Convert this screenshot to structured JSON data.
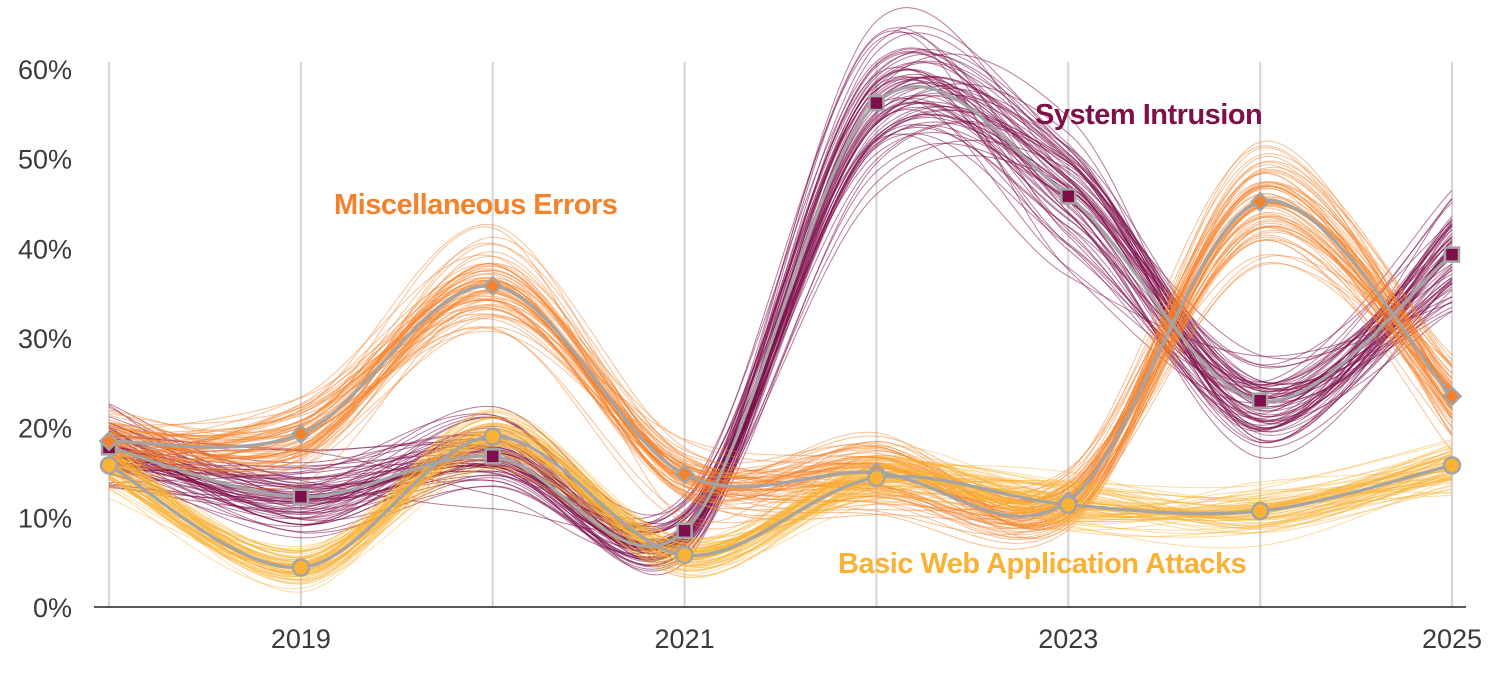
{
  "chart_data": {
    "type": "line",
    "x": [
      2018,
      2019,
      2020,
      2021,
      2022,
      2023,
      2024,
      2025
    ],
    "xticks": [
      "2019",
      "2021",
      "2023",
      "2025"
    ],
    "xtick_values": [
      2019,
      2021,
      2023,
      2025
    ],
    "yticks": [
      "0%",
      "10%",
      "20%",
      "30%",
      "40%",
      "50%",
      "60%"
    ],
    "ytick_values": [
      0,
      10,
      20,
      30,
      40,
      50,
      60
    ],
    "xlim": [
      2018,
      2025
    ],
    "ylim": [
      0,
      60
    ],
    "grid": "vertical",
    "xlabel": "",
    "ylabel": "",
    "title": "",
    "series": [
      {
        "name": "System Intrusion",
        "color": "#7e0f4a",
        "marker": "square",
        "values": [
          17.8,
          12.3,
          16.8,
          8.5,
          56.2,
          45.8,
          23.0,
          39.3
        ]
      },
      {
        "name": "Miscellaneous Errors",
        "color": "#f5822a",
        "marker": "diamond",
        "values": [
          18.5,
          19.3,
          35.8,
          14.8,
          15.0,
          11.8,
          45.2,
          23.5
        ]
      },
      {
        "name": "Basic Web Application Attacks",
        "color": "#f9b233",
        "marker": "circle",
        "values": [
          15.8,
          4.4,
          19.0,
          5.8,
          14.4,
          11.4,
          10.7,
          15.8
        ]
      }
    ],
    "mean_line_color": "#a4a4a4",
    "annotations": [
      {
        "text": "System Intrusion",
        "color": "#7e0f4a"
      },
      {
        "text": "Miscellaneous Errors",
        "color": "#f5822a"
      },
      {
        "text": "Basic Web Application Attacks",
        "color": "#f9b233"
      }
    ]
  }
}
